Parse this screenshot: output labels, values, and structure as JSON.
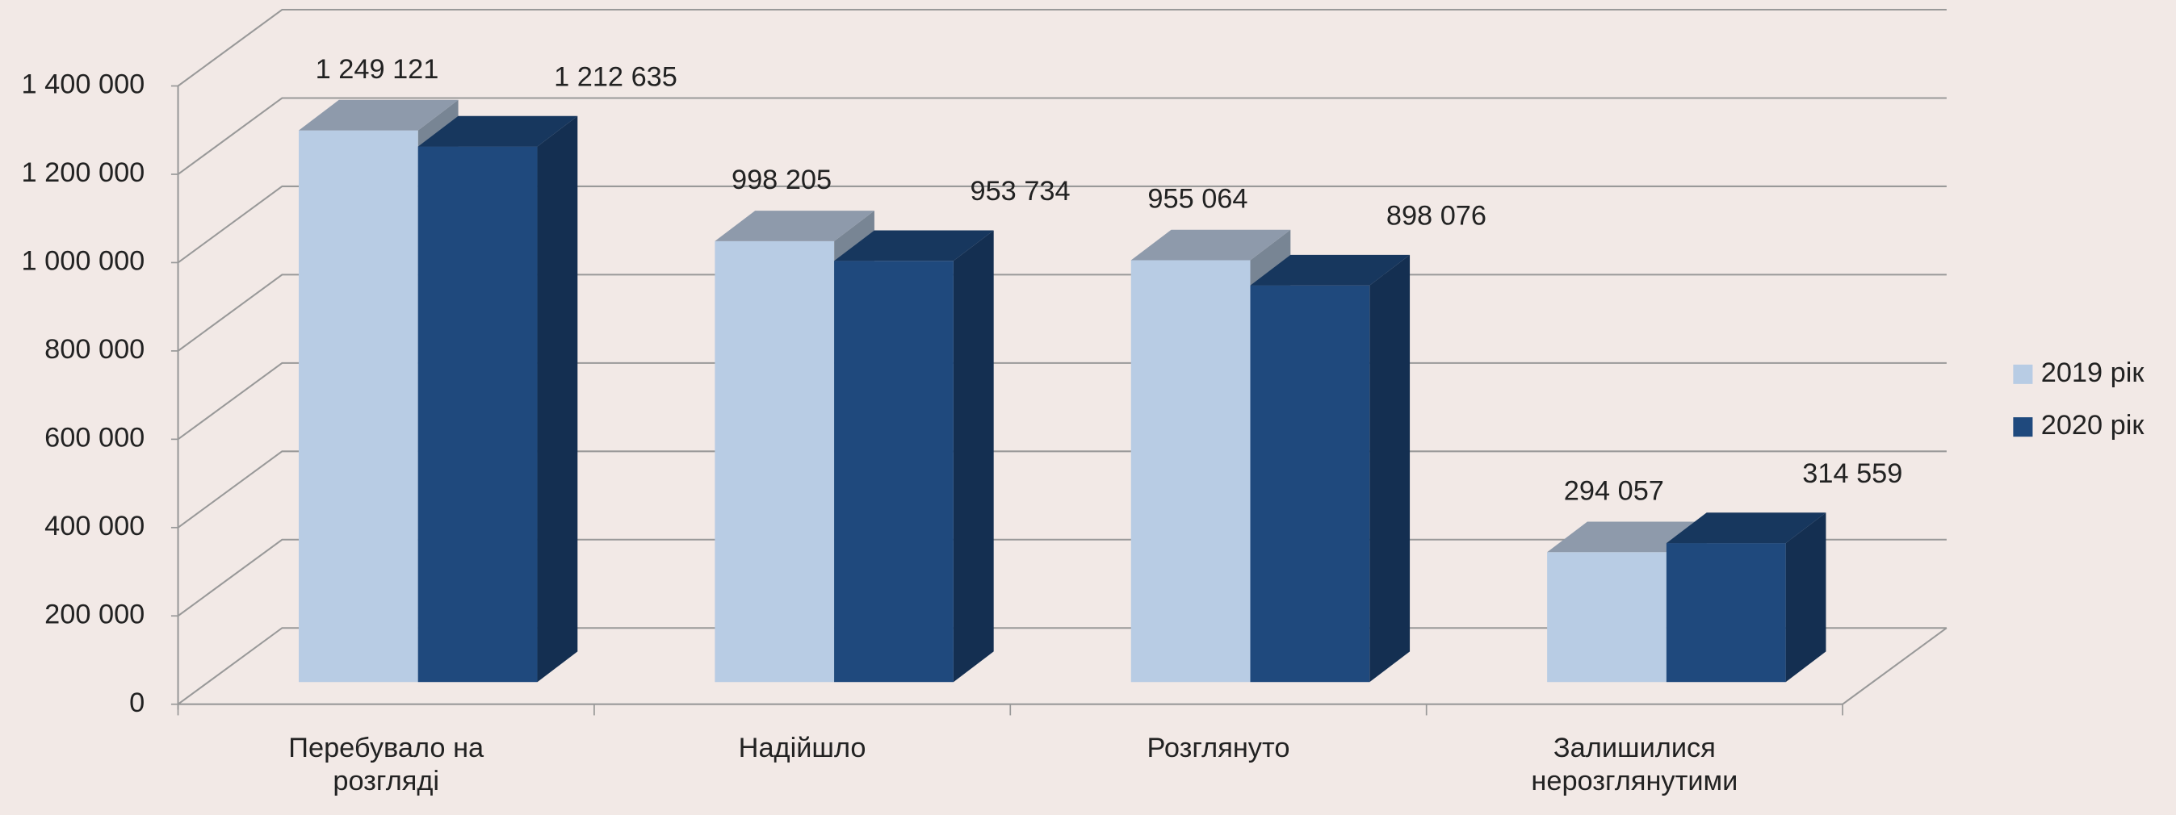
{
  "chart_data": {
    "type": "bar3d",
    "categories": [
      "Перебувало на розгляді",
      "Надійшло",
      "Розглянуто",
      "Залишилися нерозглянутими"
    ],
    "series": [
      {
        "name": "2019 рік",
        "color": "#b8cce4",
        "values": [
          1249121,
          998205,
          955064,
          294057
        ],
        "value_labels": [
          "1 249 121",
          "998 205",
          "955 064",
          "294 057"
        ]
      },
      {
        "name": "2020 рік",
        "color": "#1f497d",
        "values": [
          1212635,
          953734,
          898076,
          314559
        ],
        "value_labels": [
          "1 212 635",
          "953 734",
          "898 076",
          "314 559"
        ]
      }
    ],
    "ylim": [
      0,
      1400000
    ],
    "yticks": [
      {
        "value": 0,
        "label": "0"
      },
      {
        "value": 200000,
        "label": "200 000"
      },
      {
        "value": 400000,
        "label": "400 000"
      },
      {
        "value": 600000,
        "label": "600 000"
      },
      {
        "value": 800000,
        "label": "800 000"
      },
      {
        "value": 1000000,
        "label": "1 000 000"
      },
      {
        "value": 1200000,
        "label": "1 200 000"
      },
      {
        "value": 1400000,
        "label": "1 400 000"
      }
    ],
    "grid": true,
    "legend": "right"
  }
}
